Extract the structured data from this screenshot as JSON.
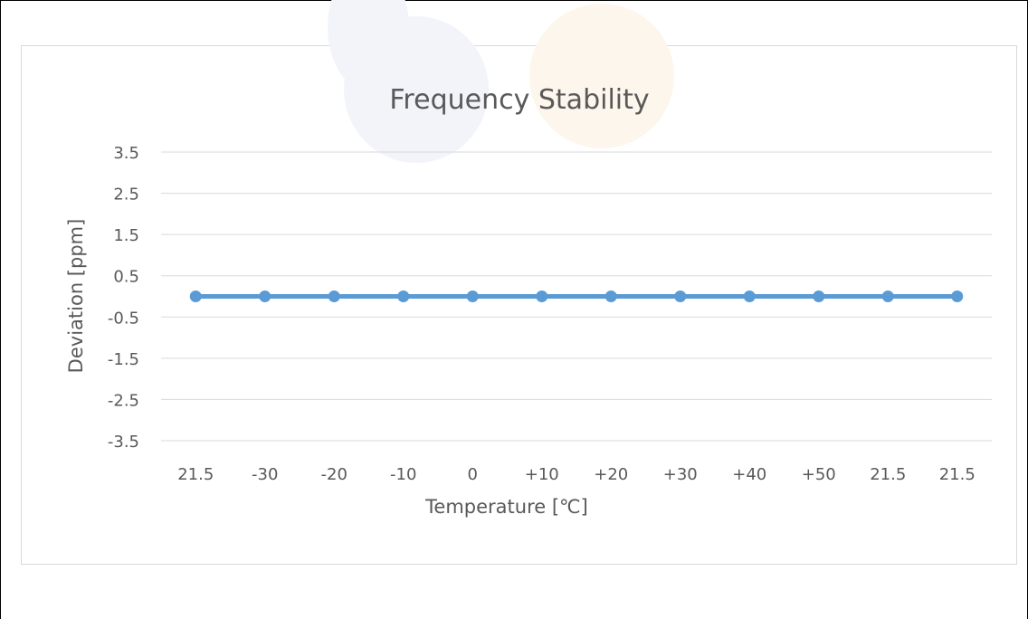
{
  "chart_data": {
    "type": "line",
    "title": "Frequency Stability",
    "xlabel": "Temperature [℃]",
    "ylabel": "Deviation [ppm]",
    "categories": [
      "21.5",
      "-30",
      "-20",
      "-10",
      "0",
      "+10",
      "+20",
      "+30",
      "+40",
      "+50",
      "21.5",
      "21.5"
    ],
    "series": [
      {
        "values": [
          0,
          0,
          0,
          0,
          0,
          0,
          0,
          0,
          0,
          0,
          0,
          0
        ]
      }
    ],
    "yticks": [
      "3.5",
      "2.5",
      "1.5",
      "0.5",
      "-0.5",
      "-1.5",
      "-2.5",
      "-3.5"
    ],
    "ylim": [
      -3.5,
      3.5
    ],
    "grid": true,
    "legend": "none",
    "series_color": "#5b9bd5"
  }
}
